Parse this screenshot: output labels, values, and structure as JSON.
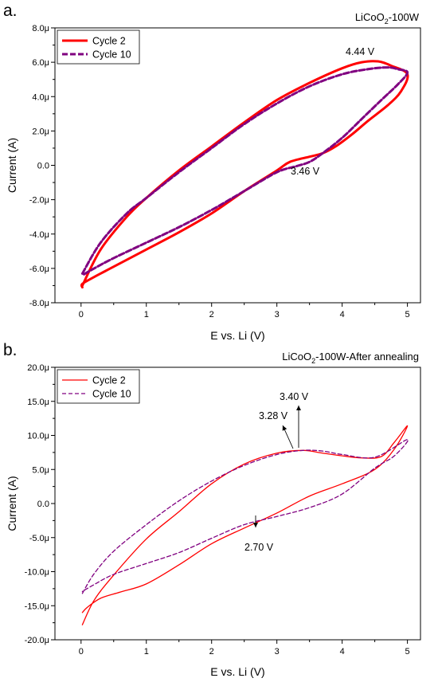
{
  "chart_data": [
    {
      "type": "line",
      "panel_label": "a.",
      "title_parts": [
        "LiCoO",
        "2",
        "-100W"
      ],
      "xlabel": "E vs. Li (V)",
      "ylabel": "Current (A)",
      "xlim": [
        -0.4,
        5.2
      ],
      "ylim": [
        -8.0,
        8.0
      ],
      "x_ticks": [
        0,
        1,
        2,
        3,
        4,
        5
      ],
      "x_tick_labels": [
        "0",
        "1",
        "2",
        "3",
        "4",
        "5"
      ],
      "y_ticks": [
        -8,
        -6,
        -4,
        -2,
        0,
        2,
        4,
        6,
        8
      ],
      "y_tick_labels": [
        "-8.0μ",
        "-6.0μ",
        "-4.0μ",
        "-2.0μ",
        "0.0",
        "2.0μ",
        "4.0μ",
        "6.0μ",
        "8.0μ"
      ],
      "y_unit": "μA",
      "grid": false,
      "legend_position": "top-left",
      "series": [
        {
          "name": "Cycle 2",
          "color": "#ff0000",
          "dash": "solid",
          "width": 3,
          "x": [
            0.02,
            0.3,
            0.7,
            1.0,
            1.5,
            2.0,
            2.5,
            3.0,
            3.5,
            4.0,
            4.3,
            4.55,
            4.75,
            5.0,
            4.9,
            4.7,
            4.4,
            4.15,
            3.9,
            3.7,
            3.5,
            3.2,
            3.0,
            2.5,
            2.0,
            1.5,
            1.0,
            0.5,
            0.2,
            0.02,
            0.02
          ],
          "y": [
            -7.0,
            -4.9,
            -3.0,
            -1.9,
            -0.3,
            1.1,
            2.5,
            3.8,
            4.8,
            5.65,
            6.0,
            6.05,
            5.8,
            5.3,
            4.3,
            3.5,
            2.6,
            1.8,
            1.1,
            0.7,
            0.5,
            0.2,
            -0.3,
            -1.5,
            -2.8,
            -3.9,
            -4.9,
            -5.9,
            -6.5,
            -6.9,
            -7.1
          ]
        },
        {
          "name": "Cycle 10",
          "color": "#800080",
          "dash": "dashed",
          "width": 3,
          "x": [
            0.02,
            0.3,
            0.7,
            1.0,
            1.5,
            2.0,
            2.5,
            3.0,
            3.5,
            4.0,
            4.4,
            4.7,
            4.85,
            5.0,
            4.85,
            4.6,
            4.3,
            4.0,
            3.7,
            3.5,
            3.3,
            3.0,
            2.5,
            2.0,
            1.5,
            1.0,
            0.5,
            0.2,
            0.02
          ],
          "y": [
            -6.3,
            -4.5,
            -2.8,
            -1.9,
            -0.4,
            1.0,
            2.4,
            3.6,
            4.6,
            5.3,
            5.6,
            5.7,
            5.6,
            5.4,
            4.7,
            3.8,
            2.7,
            1.6,
            0.7,
            0.2,
            -0.05,
            -0.4,
            -1.5,
            -2.6,
            -3.6,
            -4.5,
            -5.4,
            -6.0,
            -6.4
          ]
        }
      ],
      "annotations": [
        {
          "text": "4.44 V",
          "x": 4.44,
          "y": 6.3
        },
        {
          "text": "3.46 V",
          "x": 3.46,
          "y": -0.2
        }
      ]
    },
    {
      "type": "line",
      "panel_label": "b.",
      "title_parts": [
        "LiCoO",
        "2",
        "-100W-After annealing"
      ],
      "xlabel": "E vs. Li (V)",
      "ylabel": "Current (A)",
      "xlim": [
        -0.4,
        5.2
      ],
      "ylim": [
        -20.0,
        20.0
      ],
      "x_ticks": [
        0,
        1,
        2,
        3,
        4,
        5
      ],
      "x_tick_labels": [
        "0",
        "1",
        "2",
        "3",
        "4",
        "5"
      ],
      "y_ticks": [
        -20,
        -15,
        -10,
        -5,
        0,
        5,
        10,
        15,
        20
      ],
      "y_tick_labels": [
        "-20.0μ",
        "-15.0μ",
        "-10.0μ",
        "-5.0μ",
        "0.0",
        "5.0μ",
        "10.0μ",
        "15.0μ",
        "20.0μ"
      ],
      "y_unit": "μA",
      "grid": false,
      "legend_position": "top-left",
      "series": [
        {
          "name": "Cycle 2",
          "color": "#ff0000",
          "dash": "solid",
          "width": 1.3,
          "x": [
            0.02,
            0.2,
            0.5,
            1.0,
            1.5,
            2.0,
            2.5,
            3.0,
            3.4,
            3.7,
            4.0,
            4.3,
            4.6,
            4.8,
            5.0,
            4.8,
            4.5,
            4.0,
            3.5,
            3.0,
            2.5,
            2.0,
            1.5,
            1.0,
            0.6,
            0.3,
            0.1,
            0.02
          ],
          "y": [
            -17.8,
            -14.2,
            -10.5,
            -5.2,
            -1.2,
            2.9,
            5.8,
            7.4,
            7.8,
            7.4,
            7.0,
            6.7,
            6.9,
            9.0,
            11.4,
            8.0,
            5.0,
            2.9,
            1.1,
            -1.4,
            -3.6,
            -5.9,
            -9.0,
            -11.8,
            -13.0,
            -13.9,
            -15.2,
            -16.0
          ]
        },
        {
          "name": "Cycle 10",
          "color": "#800080",
          "dash": "dashed",
          "width": 1.3,
          "x": [
            0.02,
            0.2,
            0.5,
            1.0,
            1.5,
            2.0,
            2.5,
            3.0,
            3.4,
            3.7,
            4.0,
            4.5,
            5.0,
            4.8,
            4.5,
            4.0,
            3.5,
            3.0,
            2.5,
            2.0,
            1.5,
            1.0,
            0.5,
            0.2,
            0.02
          ],
          "y": [
            -13.2,
            -10.3,
            -7.0,
            -3.1,
            0.4,
            3.3,
            5.6,
            7.2,
            7.8,
            7.7,
            7.2,
            6.8,
            9.4,
            7.0,
            5.2,
            1.4,
            -0.6,
            -1.9,
            -3.1,
            -5.1,
            -7.2,
            -8.8,
            -10.4,
            -11.9,
            -12.9
          ]
        }
      ],
      "annotations": [
        {
          "text": "3.40 V",
          "x": 3.4,
          "y": 7.8
        },
        {
          "text": "3.28 V",
          "x": 3.28,
          "y": 7.7
        },
        {
          "text": "2.70 V",
          "x": 2.7,
          "y": -1.6
        }
      ]
    }
  ]
}
